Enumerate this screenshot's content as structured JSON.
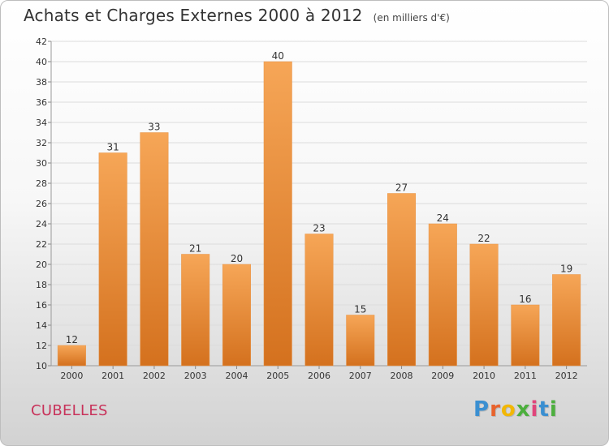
{
  "header": {
    "title": "Achats et Charges Externes 2000 à 2012",
    "unit": "(en milliers d'€)"
  },
  "footer": {
    "commune": "CUBELLES",
    "brand_letters": [
      "P",
      "r",
      "o",
      "x",
      "i",
      "t",
      "i"
    ],
    "brand_colors": [
      "#3a8fd1",
      "#e8622c",
      "#f2b705",
      "#4caf3d",
      "#e0457b",
      "#3a8fd1",
      "#4caf3d"
    ]
  },
  "chart_data": {
    "type": "bar",
    "title": "Achats et Charges Externes 2000 à 2012",
    "subtitle": "(en milliers d'€)",
    "xlabel": "",
    "ylabel": "",
    "categories": [
      "2000",
      "2001",
      "2002",
      "2003",
      "2004",
      "2005",
      "2006",
      "2007",
      "2008",
      "2009",
      "2010",
      "2011",
      "2012"
    ],
    "values": [
      12,
      31,
      33,
      21,
      20,
      40,
      23,
      15,
      27,
      24,
      22,
      16,
      19
    ],
    "ylim": [
      10,
      42
    ],
    "yticks": [
      10,
      12,
      14,
      16,
      18,
      20,
      22,
      24,
      26,
      28,
      30,
      32,
      34,
      36,
      38,
      40,
      42
    ],
    "grid": true,
    "bar_color_top": "#f6a657",
    "bar_color_bottom": "#d4711e"
  }
}
